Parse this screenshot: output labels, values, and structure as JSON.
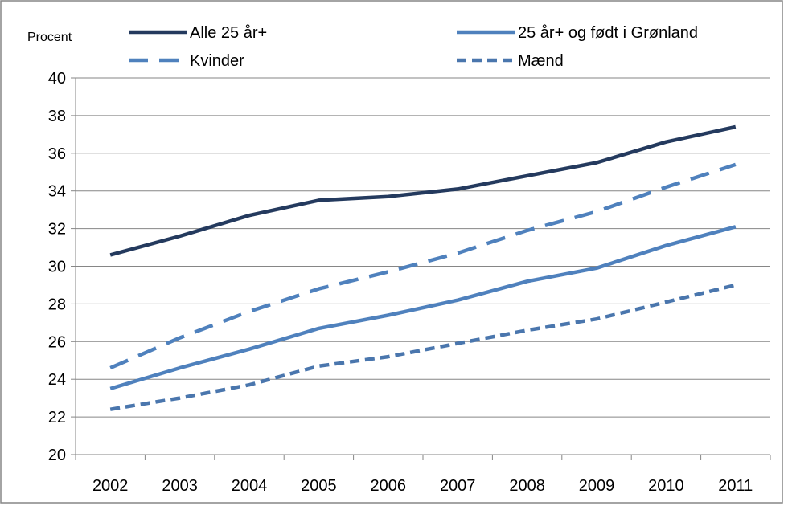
{
  "chart_data": {
    "type": "line",
    "ylabel": "Procent",
    "xlabel": "",
    "title": "",
    "ylim": [
      20,
      40
    ],
    "ytick_step": 2,
    "grid": "horizontal",
    "legend_position": "top",
    "categories": [
      "2002",
      "2003",
      "2004",
      "2005",
      "2006",
      "2007",
      "2008",
      "2009",
      "2010",
      "2011"
    ],
    "series": [
      {
        "name": "Alle 25 år+",
        "color": "#243a5e",
        "dash": "solid",
        "values": [
          30.6,
          31.6,
          32.7,
          33.5,
          33.7,
          34.1,
          34.8,
          35.5,
          36.6,
          37.4
        ]
      },
      {
        "name": "25 år+ og født i Grønland",
        "color": "#4f81bd",
        "dash": "solid",
        "values": [
          23.5,
          24.6,
          25.6,
          26.7,
          27.4,
          28.2,
          29.2,
          29.9,
          31.1,
          32.1
        ]
      },
      {
        "name": "Kvinder",
        "color": "#4f81bd",
        "dash": "long-dash",
        "values": [
          24.6,
          26.2,
          27.6,
          28.8,
          29.7,
          30.7,
          31.9,
          32.9,
          34.2,
          35.4
        ]
      },
      {
        "name": "Mænd",
        "color": "#4a76ad",
        "dash": "short-dash",
        "values": [
          22.4,
          23.0,
          23.7,
          24.7,
          25.2,
          25.9,
          26.6,
          27.2,
          28.1,
          29.0
        ]
      }
    ]
  }
}
